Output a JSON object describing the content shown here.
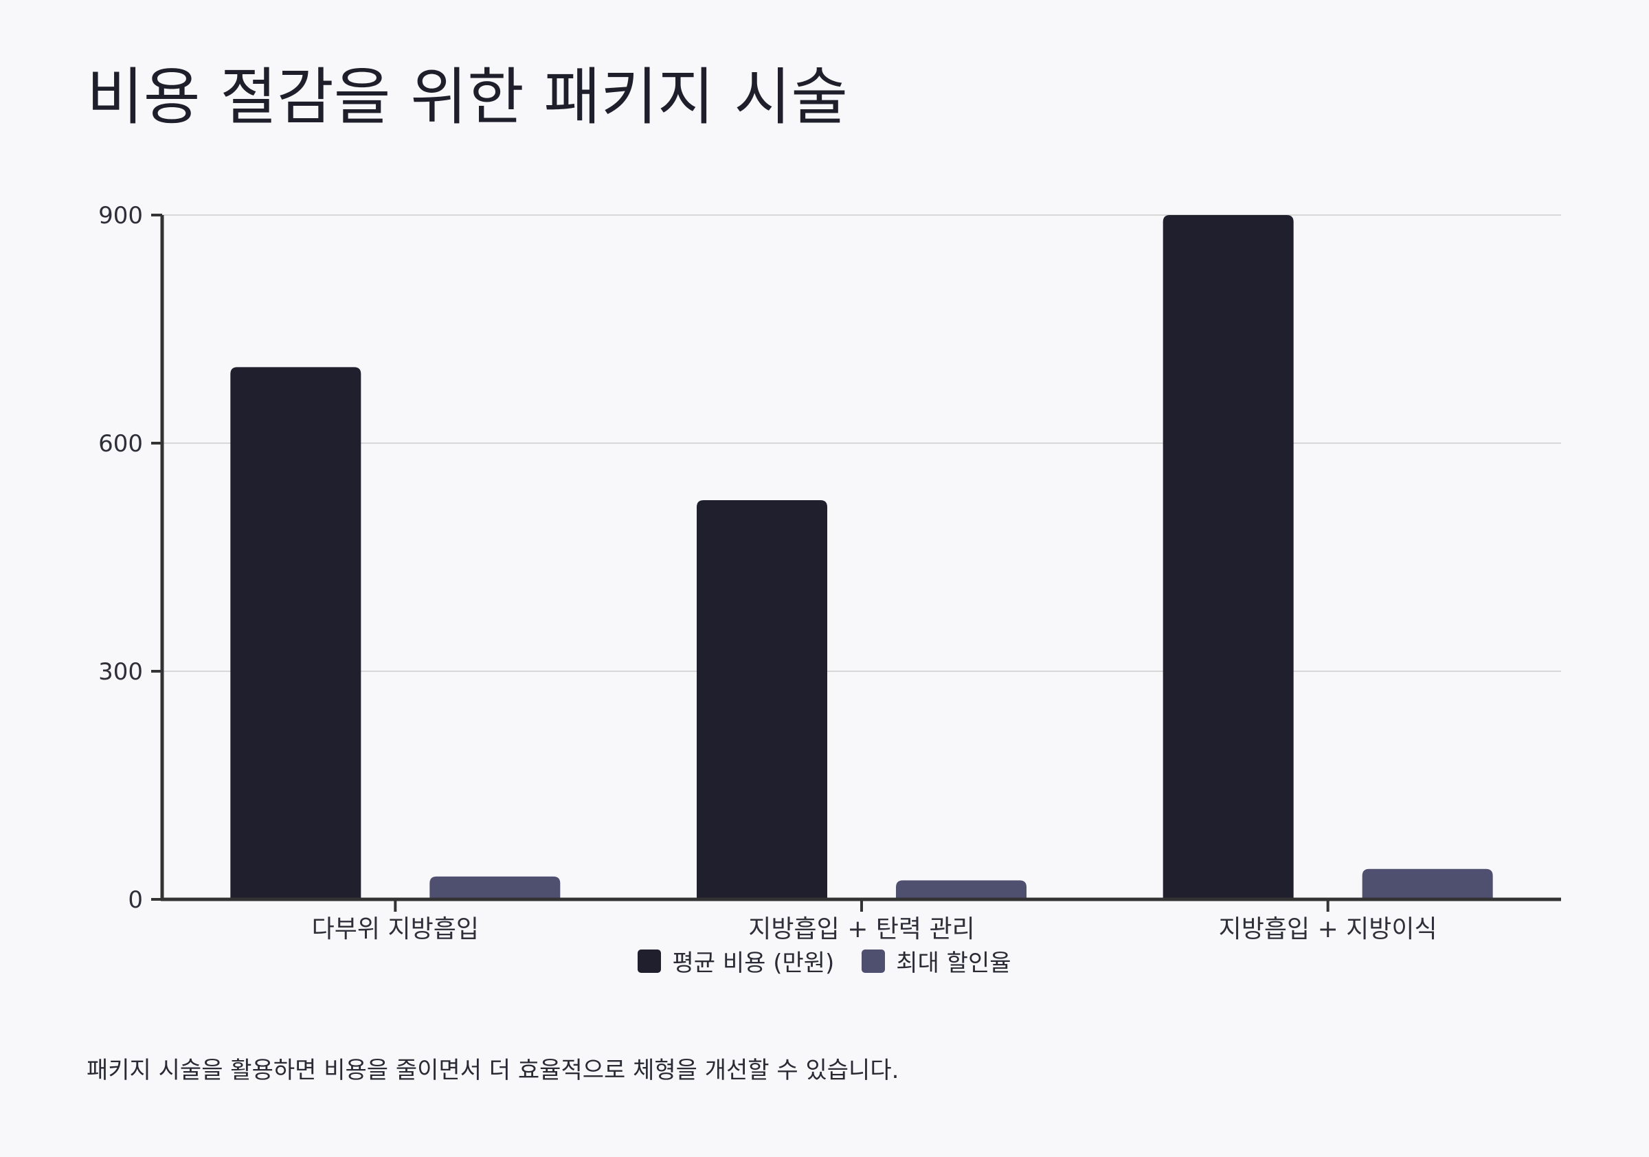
{
  "title": "비용 절감을 위한 패키지 시술",
  "caption": "패키지 시술을 활용하면 비용을 줄이면서 더 효율적으로 체형을 개선할 수 있습니다.",
  "colors": {
    "background": "#f8f8fb",
    "series_avg_cost": "#201f2d",
    "series_max_discount": "#4f4f70",
    "axis": "#333333",
    "grid": "#cccccc"
  },
  "chart_data": {
    "type": "bar",
    "categories": [
      "다부위 지방흡입",
      "지방흡입 + 탄력 관리",
      "지방흡입 + 지방이식"
    ],
    "series": [
      {
        "name": "평균 비용 (만원)",
        "values": [
          700,
          525,
          900
        ],
        "color": "#201f2d"
      },
      {
        "name": "최대 할인율",
        "values": [
          30,
          25,
          40
        ],
        "color": "#4f4f70"
      }
    ],
    "yticks": [
      0,
      300,
      600,
      900
    ],
    "ylim": [
      0,
      900
    ],
    "grid": true,
    "legend_position": "bottom-center",
    "xlabel": "",
    "ylabel": ""
  }
}
